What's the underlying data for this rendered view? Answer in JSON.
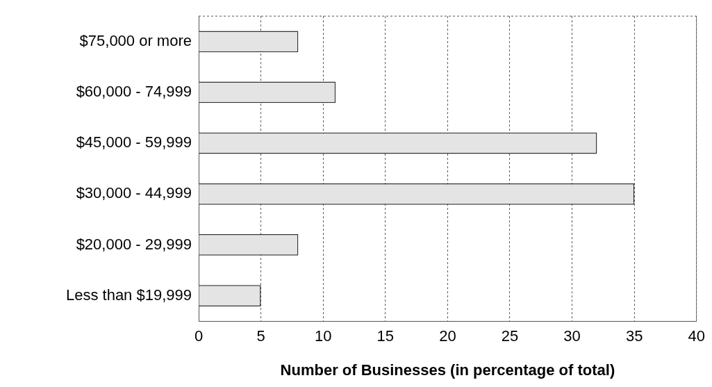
{
  "chart_data": {
    "type": "bar",
    "orientation": "horizontal",
    "xlabel": "Number of Businesses (in percentage of total)",
    "categories": [
      "$75,000 or more",
      "$60,000 - 74,999",
      "$45,000 - 59,999",
      "$30,000 - 44,999",
      "$20,000 - 29,999",
      "Less than $19,999"
    ],
    "values": [
      8,
      11,
      32,
      35,
      8,
      5
    ],
    "color": "#e4e4e4",
    "xlim": [
      0,
      40
    ],
    "xticks": [
      0,
      5,
      10,
      15,
      20,
      25,
      30,
      35,
      40
    ],
    "grid": "x",
    "legend": false
  }
}
